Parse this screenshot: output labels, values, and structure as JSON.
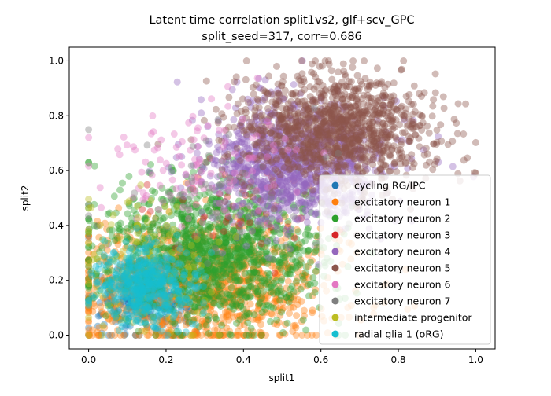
{
  "chart_data": {
    "type": "scatter",
    "title_lines": [
      "Latent time correlation split1vs2, glf+scv_GPC",
      "split_seed=317, corr=0.686"
    ],
    "xlabel": "split1",
    "ylabel": "split2",
    "xlim": [
      -0.05,
      1.05
    ],
    "ylim": [
      -0.05,
      1.05
    ],
    "xticks": [
      "0.0",
      "0.2",
      "0.4",
      "0.6",
      "0.8",
      "1.0"
    ],
    "yticks": [
      "0.0",
      "0.2",
      "0.4",
      "0.6",
      "0.8",
      "1.0"
    ],
    "grid": false,
    "legend_position": "lower right",
    "series": [
      {
        "name": "cycling RG/IPC",
        "color": "#1f77b4",
        "center": [
          0.14,
          0.12
        ],
        "spread": [
          0.07,
          0.07
        ],
        "n": 250
      },
      {
        "name": "excitatory neuron 1",
        "color": "#ff7f0e",
        "center": [
          0.3,
          0.18
        ],
        "spread": [
          0.17,
          0.12
        ],
        "n": 1100
      },
      {
        "name": "excitatory neuron 2",
        "color": "#2ca02c",
        "center": [
          0.32,
          0.3
        ],
        "spread": [
          0.14,
          0.13
        ],
        "n": 1300
      },
      {
        "name": "excitatory neuron 3",
        "color": "#d62728",
        "center": [
          0.4,
          0.45
        ],
        "spread": [
          0.1,
          0.1
        ],
        "n": 40
      },
      {
        "name": "excitatory neuron 4",
        "color": "#9467bd",
        "center": [
          0.52,
          0.62
        ],
        "spread": [
          0.11,
          0.11
        ],
        "n": 1100
      },
      {
        "name": "excitatory neuron 5",
        "color": "#8c564b",
        "center": [
          0.64,
          0.75
        ],
        "spread": [
          0.12,
          0.1
        ],
        "n": 1200
      },
      {
        "name": "excitatory neuron 6",
        "color": "#e377c2",
        "center": [
          0.3,
          0.6
        ],
        "spread": [
          0.12,
          0.12
        ],
        "n": 120
      },
      {
        "name": "excitatory neuron 7",
        "color": "#7f7f7f",
        "center": [
          0.3,
          0.5
        ],
        "spread": [
          0.15,
          0.15
        ],
        "n": 60
      },
      {
        "name": "intermediate progenitor",
        "color": "#bcbd22",
        "center": [
          0.15,
          0.25
        ],
        "spread": [
          0.09,
          0.15
        ],
        "n": 120
      },
      {
        "name": "radial glia 1 (oRG)",
        "color": "#17becf",
        "center": [
          0.15,
          0.18
        ],
        "spread": [
          0.06,
          0.07
        ],
        "n": 500
      }
    ]
  }
}
